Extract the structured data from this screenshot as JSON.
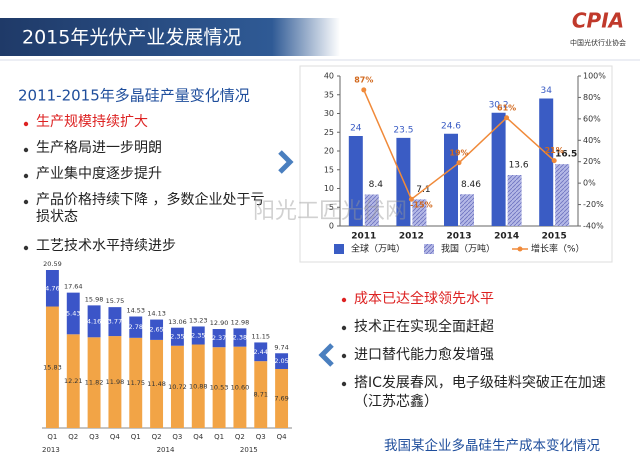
{
  "header": {
    "title": "2015年光伏产业发展情况",
    "logo": "CPIA",
    "logo_subtitle": "中国光伏行业协会",
    "watermark": "阳光工匠光伏网"
  },
  "left_panel": {
    "subtitle": "2011-2015年多晶硅产量变化情况",
    "bullets": [
      "生产规模持续扩大",
      "生产格局进一步明朗",
      "产业集中度逐步提升",
      "产品价格持续下降 ，多数企业处于亏损状态",
      "工艺技术水平持续进步"
    ]
  },
  "right_panel": {
    "bullets": [
      "成本已达全球领先水平",
      "技术正在实现全面赶超",
      "进口替代能力愈发增强",
      "搭IC发展春风，电子级硅料突破正在加速（江苏芯鑫）"
    ],
    "caption": "我国某企业多晶硅生产成本变化情况"
  },
  "chart_data": [
    {
      "type": "bar-line",
      "categories": [
        "2011",
        "2012",
        "2013",
        "2014",
        "2015"
      ],
      "series": [
        {
          "name": "全球（万吨）",
          "color": "#3a5cc4",
          "values": [
            24,
            23.5,
            24.6,
            30.2,
            34
          ]
        },
        {
          "name": "我国（万吨）",
          "color": "#9ea3dc",
          "values": [
            8.4,
            7.1,
            8.46,
            13.6,
            16.5
          ]
        },
        {
          "name": "增长率（%）",
          "color": "#f08a3a",
          "axis": "y2",
          "values": [
            87,
            -15,
            19,
            61,
            21
          ],
          "value_labels": [
            "87%",
            "-15%",
            "19%",
            "61%",
            "21%"
          ]
        }
      ],
      "ylim": [
        0,
        40
      ],
      "yticks": [
        0,
        5,
        10,
        15,
        20,
        25,
        30,
        35,
        40
      ],
      "y2lim": [
        -40,
        100
      ],
      "y2ticks": [
        {
          "value": -40,
          "label": "-40%"
        },
        {
          "value": -20,
          "label": "-20%"
        },
        {
          "value": 0,
          "label": "0%"
        },
        {
          "value": 20,
          "label": "20%"
        },
        {
          "value": 40,
          "label": "40%"
        },
        {
          "value": 60,
          "label": "60%"
        },
        {
          "value": 80,
          "label": "80%"
        },
        {
          "value": 100,
          "label": "100%"
        }
      ],
      "legend": "bottom"
    },
    {
      "type": "stacked-bar",
      "categories": [
        "Q1",
        "Q2",
        "Q3",
        "Q4",
        "Q1",
        "Q2",
        "Q3",
        "Q4",
        "Q1",
        "Q2",
        "Q3",
        "Q4"
      ],
      "groups": [
        "2013",
        "2014",
        "2015"
      ],
      "series": [
        {
          "color": "#f2a446",
          "values": [
            15.83,
            12.21,
            11.82,
            11.98,
            11.75,
            11.48,
            10.72,
            10.88,
            10.53,
            10.6,
            8.71,
            7.69
          ],
          "value_labels": [
            "15.83",
            "12.21",
            "11.82",
            "11.98",
            "11.75",
            "11.48",
            "10.72",
            "10.88",
            "10.53",
            "10.60",
            "8.71",
            "7.69"
          ]
        },
        {
          "color": "#3b55c8",
          "values": [
            4.76,
            5.43,
            4.16,
            3.77,
            2.78,
            2.65,
            2.35,
            2.35,
            2.37,
            2.38,
            2.44,
            2.05
          ],
          "value_labels": [
            "4.76",
            "5.43",
            "4.16",
            "3.77",
            "2.78",
            "2.65",
            "2.35",
            "2.35",
            "2.37",
            "2.38",
            "2.44",
            "2.05"
          ]
        }
      ],
      "totals": [
        20.59,
        17.64,
        15.98,
        15.75,
        14.53,
        14.13,
        13.06,
        13.23,
        12.9,
        12.98,
        11.15,
        9.74
      ],
      "total_labels": [
        "20.59",
        "17.64",
        "15.98",
        "15.75",
        "14.53",
        "14.13",
        "13.06",
        "13.23",
        "12.90",
        "12.98",
        "11.15",
        "9.74"
      ]
    }
  ]
}
